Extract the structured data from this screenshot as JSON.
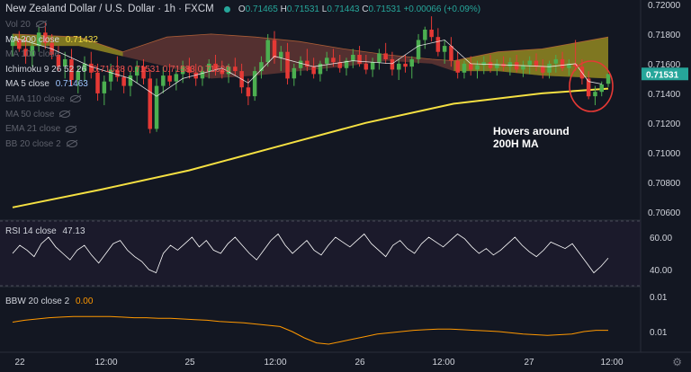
{
  "header": {
    "title": "New Zealand Dollar / U.S. Dollar",
    "timeframe": "1h",
    "source": "FXCM",
    "open": "0.71465",
    "high": "0.71531",
    "low": "0.71443",
    "close": "0.71531",
    "change": "+0.00066 (+0.09%)"
  },
  "legends": [
    {
      "label": "Vol 20",
      "value": "",
      "muted": true,
      "hidden_icon": true
    },
    {
      "label": "MA 200 close",
      "value": "0.71432",
      "value_color": "#f5e042",
      "muted": false
    },
    {
      "label": "MA 100 close",
      "value": "",
      "muted": true
    },
    {
      "label": "Ichimoku 9 26 52 26",
      "value": "0.71628  0.71531  0.71583  0.71620",
      "value_color": "#ef5350",
      "muted": false
    },
    {
      "label": "MA 5 close",
      "value": "0.71463",
      "value_color": "#9ec5ff",
      "muted": false
    },
    {
      "label": "EMA 110 close",
      "value": "",
      "muted": true,
      "hidden_icon": true
    },
    {
      "label": "MA 50 close",
      "value": "",
      "muted": true,
      "hidden_icon": true
    },
    {
      "label": "EMA 21 close",
      "value": "",
      "muted": true,
      "hidden_icon": true
    },
    {
      "label": "BB 20 close 2",
      "value": "",
      "muted": true,
      "hidden_icon": true
    }
  ],
  "annotation": {
    "line1": "Hovers around",
    "line2": "200H MA"
  },
  "rsi_legend": {
    "label": "RSI 14 close",
    "value": "47.13"
  },
  "bbw_legend": {
    "label": "BBW 20 close 2",
    "value": "0.00"
  },
  "current_price_tag": "0.71531",
  "colors": {
    "background": "#131722",
    "up": "#26a69a",
    "up_candle": "#4caf50",
    "down": "#ef5350",
    "down_candle": "#e53935",
    "ma200": "#f5e042",
    "ma5": "#ffffff",
    "cloud_bull": "#8a8a1e",
    "cloud_bear": "#6b3a35",
    "rsi": "#ffffff",
    "bbw": "#ff9800",
    "price_tag": "#26a69a",
    "circle": "#e53935"
  },
  "chart_data": [
    {
      "type": "candlestick",
      "title": "New Zealand Dollar / U.S. Dollar 1h FXCM",
      "x_ticks": [
        "22",
        "12:00",
        "25",
        "12:00",
        "26",
        "12:00",
        "27",
        "12:00"
      ],
      "y_ticks": [
        "0.72000",
        "0.71800",
        "0.71600",
        "0.71400",
        "0.71200",
        "0.71000",
        "0.70800",
        "0.70600"
      ],
      "ylim": [
        0.7055,
        0.7203
      ],
      "candles": [
        {
          "o": 0.7172,
          "h": 0.718,
          "l": 0.7165,
          "c": 0.7176
        },
        {
          "o": 0.7176,
          "h": 0.7182,
          "l": 0.7168,
          "c": 0.717
        },
        {
          "o": 0.717,
          "h": 0.7178,
          "l": 0.716,
          "c": 0.7165
        },
        {
          "o": 0.7165,
          "h": 0.7175,
          "l": 0.7158,
          "c": 0.7172
        },
        {
          "o": 0.7172,
          "h": 0.7185,
          "l": 0.7168,
          "c": 0.7181
        },
        {
          "o": 0.7181,
          "h": 0.7188,
          "l": 0.717,
          "c": 0.7174
        },
        {
          "o": 0.7174,
          "h": 0.718,
          "l": 0.7163,
          "c": 0.7166
        },
        {
          "o": 0.7166,
          "h": 0.7172,
          "l": 0.7155,
          "c": 0.7158
        },
        {
          "o": 0.7158,
          "h": 0.7168,
          "l": 0.715,
          "c": 0.7163
        },
        {
          "o": 0.7163,
          "h": 0.717,
          "l": 0.7145,
          "c": 0.7149
        },
        {
          "o": 0.7149,
          "h": 0.7158,
          "l": 0.714,
          "c": 0.7155
        },
        {
          "o": 0.7155,
          "h": 0.7165,
          "l": 0.7148,
          "c": 0.716
        },
        {
          "o": 0.716,
          "h": 0.7168,
          "l": 0.715,
          "c": 0.7154
        },
        {
          "o": 0.7154,
          "h": 0.716,
          "l": 0.7135,
          "c": 0.714
        },
        {
          "o": 0.714,
          "h": 0.7152,
          "l": 0.7132,
          "c": 0.7148
        },
        {
          "o": 0.7148,
          "h": 0.716,
          "l": 0.7142,
          "c": 0.7156
        },
        {
          "o": 0.7156,
          "h": 0.7165,
          "l": 0.7148,
          "c": 0.7151
        },
        {
          "o": 0.7151,
          "h": 0.7158,
          "l": 0.714,
          "c": 0.7145
        },
        {
          "o": 0.7145,
          "h": 0.7155,
          "l": 0.7138,
          "c": 0.7152
        },
        {
          "o": 0.7152,
          "h": 0.7162,
          "l": 0.7147,
          "c": 0.7158
        },
        {
          "o": 0.7158,
          "h": 0.7163,
          "l": 0.7146,
          "c": 0.715
        },
        {
          "o": 0.715,
          "h": 0.7156,
          "l": 0.7113,
          "c": 0.7116
        },
        {
          "o": 0.7116,
          "h": 0.715,
          "l": 0.7114,
          "c": 0.7145
        },
        {
          "o": 0.7145,
          "h": 0.7158,
          "l": 0.714,
          "c": 0.7152
        },
        {
          "o": 0.7152,
          "h": 0.716,
          "l": 0.7145,
          "c": 0.7148
        },
        {
          "o": 0.7148,
          "h": 0.7156,
          "l": 0.7142,
          "c": 0.7153
        },
        {
          "o": 0.7153,
          "h": 0.7162,
          "l": 0.7147,
          "c": 0.7158
        },
        {
          "o": 0.7158,
          "h": 0.7164,
          "l": 0.715,
          "c": 0.7154
        },
        {
          "o": 0.7154,
          "h": 0.716,
          "l": 0.7145,
          "c": 0.715
        },
        {
          "o": 0.715,
          "h": 0.7158,
          "l": 0.7145,
          "c": 0.7155
        },
        {
          "o": 0.7155,
          "h": 0.7163,
          "l": 0.715,
          "c": 0.716
        },
        {
          "o": 0.716,
          "h": 0.7166,
          "l": 0.7152,
          "c": 0.7156
        },
        {
          "o": 0.7156,
          "h": 0.7162,
          "l": 0.715,
          "c": 0.7153
        },
        {
          "o": 0.7153,
          "h": 0.716,
          "l": 0.7147,
          "c": 0.7158
        },
        {
          "o": 0.7158,
          "h": 0.7164,
          "l": 0.7152,
          "c": 0.7155
        },
        {
          "o": 0.7155,
          "h": 0.716,
          "l": 0.714,
          "c": 0.7144
        },
        {
          "o": 0.7144,
          "h": 0.715,
          "l": 0.7132,
          "c": 0.7138
        },
        {
          "o": 0.7138,
          "h": 0.7158,
          "l": 0.7135,
          "c": 0.7155
        },
        {
          "o": 0.7155,
          "h": 0.7165,
          "l": 0.715,
          "c": 0.7161
        },
        {
          "o": 0.7161,
          "h": 0.718,
          "l": 0.7158,
          "c": 0.7176
        },
        {
          "o": 0.7176,
          "h": 0.7182,
          "l": 0.716,
          "c": 0.7164
        },
        {
          "o": 0.7164,
          "h": 0.7172,
          "l": 0.7155,
          "c": 0.7168
        },
        {
          "o": 0.7168,
          "h": 0.7174,
          "l": 0.7146,
          "c": 0.715
        },
        {
          "o": 0.715,
          "h": 0.716,
          "l": 0.7145,
          "c": 0.7157
        },
        {
          "o": 0.7157,
          "h": 0.7165,
          "l": 0.7152,
          "c": 0.7162
        },
        {
          "o": 0.7162,
          "h": 0.717,
          "l": 0.7155,
          "c": 0.7158
        },
        {
          "o": 0.7158,
          "h": 0.7164,
          "l": 0.715,
          "c": 0.7153
        },
        {
          "o": 0.7153,
          "h": 0.7162,
          "l": 0.7148,
          "c": 0.716
        },
        {
          "o": 0.716,
          "h": 0.7168,
          "l": 0.7155,
          "c": 0.7164
        },
        {
          "o": 0.7164,
          "h": 0.717,
          "l": 0.7158,
          "c": 0.7161
        },
        {
          "o": 0.7161,
          "h": 0.7166,
          "l": 0.7154,
          "c": 0.7157
        },
        {
          "o": 0.7157,
          "h": 0.7164,
          "l": 0.7152,
          "c": 0.7162
        },
        {
          "o": 0.7162,
          "h": 0.717,
          "l": 0.7157,
          "c": 0.7166
        },
        {
          "o": 0.7166,
          "h": 0.7172,
          "l": 0.7158,
          "c": 0.716
        },
        {
          "o": 0.716,
          "h": 0.7166,
          "l": 0.7153,
          "c": 0.7156
        },
        {
          "o": 0.7156,
          "h": 0.7164,
          "l": 0.7151,
          "c": 0.7161
        },
        {
          "o": 0.7161,
          "h": 0.717,
          "l": 0.7156,
          "c": 0.7167
        },
        {
          "o": 0.7167,
          "h": 0.7174,
          "l": 0.716,
          "c": 0.7163
        },
        {
          "o": 0.7163,
          "h": 0.7168,
          "l": 0.7152,
          "c": 0.7156
        },
        {
          "o": 0.7156,
          "h": 0.7163,
          "l": 0.7149,
          "c": 0.716
        },
        {
          "o": 0.716,
          "h": 0.7166,
          "l": 0.7154,
          "c": 0.7158
        },
        {
          "o": 0.7158,
          "h": 0.7165,
          "l": 0.715,
          "c": 0.7163
        },
        {
          "o": 0.7163,
          "h": 0.718,
          "l": 0.716,
          "c": 0.7176
        },
        {
          "o": 0.7176,
          "h": 0.7185,
          "l": 0.717,
          "c": 0.7183
        },
        {
          "o": 0.7183,
          "h": 0.7192,
          "l": 0.7175,
          "c": 0.7178
        },
        {
          "o": 0.7178,
          "h": 0.7184,
          "l": 0.7165,
          "c": 0.7168
        },
        {
          "o": 0.7168,
          "h": 0.7176,
          "l": 0.716,
          "c": 0.7172
        },
        {
          "o": 0.7172,
          "h": 0.7178,
          "l": 0.7158,
          "c": 0.7162
        },
        {
          "o": 0.7162,
          "h": 0.7168,
          "l": 0.715,
          "c": 0.7154
        },
        {
          "o": 0.7154,
          "h": 0.7162,
          "l": 0.715,
          "c": 0.716
        },
        {
          "o": 0.716,
          "h": 0.7165,
          "l": 0.7152,
          "c": 0.7156
        },
        {
          "o": 0.7156,
          "h": 0.7162,
          "l": 0.715,
          "c": 0.7159
        },
        {
          "o": 0.7159,
          "h": 0.7165,
          "l": 0.7153,
          "c": 0.7161
        },
        {
          "o": 0.7161,
          "h": 0.7166,
          "l": 0.7154,
          "c": 0.7157
        },
        {
          "o": 0.7157,
          "h": 0.7163,
          "l": 0.7152,
          "c": 0.716
        },
        {
          "o": 0.716,
          "h": 0.7165,
          "l": 0.7155,
          "c": 0.7158
        },
        {
          "o": 0.7158,
          "h": 0.7164,
          "l": 0.7152,
          "c": 0.7161
        },
        {
          "o": 0.7161,
          "h": 0.7166,
          "l": 0.7154,
          "c": 0.7156
        },
        {
          "o": 0.7156,
          "h": 0.7162,
          "l": 0.7151,
          "c": 0.7159
        },
        {
          "o": 0.7159,
          "h": 0.7165,
          "l": 0.7153,
          "c": 0.7162
        },
        {
          "o": 0.7162,
          "h": 0.7167,
          "l": 0.7155,
          "c": 0.7158
        },
        {
          "o": 0.7158,
          "h": 0.7163,
          "l": 0.715,
          "c": 0.7154
        },
        {
          "o": 0.7154,
          "h": 0.7162,
          "l": 0.715,
          "c": 0.716
        },
        {
          "o": 0.716,
          "h": 0.7166,
          "l": 0.7154,
          "c": 0.7163
        },
        {
          "o": 0.7163,
          "h": 0.7168,
          "l": 0.7155,
          "c": 0.7157
        },
        {
          "o": 0.7157,
          "h": 0.7163,
          "l": 0.7152,
          "c": 0.716
        },
        {
          "o": 0.716,
          "h": 0.7176,
          "l": 0.7155,
          "c": 0.7158
        },
        {
          "o": 0.7158,
          "h": 0.7163,
          "l": 0.7146,
          "c": 0.715
        },
        {
          "o": 0.715,
          "h": 0.7155,
          "l": 0.7136,
          "c": 0.7138
        },
        {
          "o": 0.7138,
          "h": 0.7145,
          "l": 0.7132,
          "c": 0.7141
        },
        {
          "o": 0.7141,
          "h": 0.7148,
          "l": 0.7138,
          "c": 0.7146
        },
        {
          "o": 0.71465,
          "h": 0.71531,
          "l": 0.71443,
          "c": 0.71531
        }
      ],
      "ma200": [
        [
          0,
          0.7063
        ],
        [
          20,
          0.7075
        ],
        [
          40,
          0.7088
        ],
        [
          60,
          0.7104
        ],
        [
          80,
          0.712
        ],
        [
          100,
          0.7133
        ],
        [
          120,
          0.714
        ],
        [
          135,
          0.71432
        ]
      ],
      "ma5": [
        [
          0,
          0.7178
        ],
        [
          6,
          0.717
        ],
        [
          12,
          0.7158
        ],
        [
          18,
          0.715
        ],
        [
          22,
          0.7138
        ],
        [
          26,
          0.715
        ],
        [
          32,
          0.7157
        ],
        [
          36,
          0.7147
        ],
        [
          40,
          0.7165
        ],
        [
          46,
          0.7158
        ],
        [
          52,
          0.7162
        ],
        [
          58,
          0.716
        ],
        [
          62,
          0.7172
        ],
        [
          66,
          0.7176
        ],
        [
          70,
          0.716
        ],
        [
          76,
          0.7159
        ],
        [
          82,
          0.7158
        ],
        [
          86,
          0.716
        ],
        [
          88,
          0.7148
        ],
        [
          90,
          0.71463
        ]
      ],
      "cloud_upper": [
        [
          0,
          0.718
        ],
        [
          15,
          0.7178
        ],
        [
          25,
          0.7168
        ],
        [
          35,
          0.7178
        ],
        [
          45,
          0.718
        ],
        [
          55,
          0.7178
        ],
        [
          65,
          0.7175
        ],
        [
          75,
          0.717
        ],
        [
          85,
          0.7166
        ],
        [
          95,
          0.7163
        ],
        [
          100,
          0.7162
        ],
        [
          110,
          0.7168
        ],
        [
          120,
          0.717
        ],
        [
          135,
          0.7178
        ]
      ],
      "cloud_lower": [
        [
          0,
          0.7172
        ],
        [
          15,
          0.7172
        ],
        [
          25,
          0.7165
        ],
        [
          35,
          0.7158
        ],
        [
          45,
          0.715
        ],
        [
          55,
          0.7152
        ],
        [
          65,
          0.7155
        ],
        [
          75,
          0.7158
        ],
        [
          85,
          0.7162
        ],
        [
          95,
          0.716
        ],
        [
          100,
          0.7155
        ],
        [
          110,
          0.7155
        ],
        [
          120,
          0.7152
        ],
        [
          135,
          0.715
        ]
      ]
    },
    {
      "type": "line",
      "title": "RSI 14 close",
      "y_ticks": [
        "60.00",
        "40.00"
      ],
      "ylim": [
        30,
        70
      ],
      "values": [
        50,
        55,
        52,
        48,
        56,
        60,
        54,
        50,
        46,
        52,
        55,
        49,
        44,
        50,
        56,
        58,
        52,
        48,
        45,
        40,
        38,
        50,
        55,
        52,
        56,
        60,
        54,
        58,
        52,
        50,
        56,
        60,
        55,
        50,
        46,
        52,
        58,
        62,
        55,
        50,
        54,
        58,
        52,
        49,
        55,
        60,
        57,
        54,
        58,
        62,
        56,
        52,
        48,
        55,
        58,
        53,
        50,
        56,
        60,
        57,
        54,
        58,
        62,
        59,
        54,
        50,
        53,
        49,
        52,
        56,
        60,
        55,
        51,
        48,
        52,
        57,
        55,
        53,
        56,
        50,
        44,
        38,
        42,
        47.13
      ]
    },
    {
      "type": "line",
      "title": "BBW 20 close 2",
      "y_ticks": [
        "0.01",
        "0.01"
      ],
      "ylim": [
        0,
        1
      ],
      "values": [
        0.45,
        0.48,
        0.5,
        0.52,
        0.53,
        0.54,
        0.54,
        0.54,
        0.54,
        0.53,
        0.52,
        0.52,
        0.51,
        0.51,
        0.5,
        0.49,
        0.48,
        0.46,
        0.45,
        0.44,
        0.42,
        0.4,
        0.38,
        0.3,
        0.2,
        0.12,
        0.1,
        0.14,
        0.18,
        0.22,
        0.26,
        0.28,
        0.3,
        0.32,
        0.33,
        0.34,
        0.34,
        0.33,
        0.32,
        0.31,
        0.3,
        0.28,
        0.26,
        0.25,
        0.24,
        0.25,
        0.26,
        0.3,
        0.32,
        0.32
      ]
    }
  ],
  "x_axis_labels": [
    "22",
    "12:00",
    "25",
    "12:00",
    "26",
    "12:00",
    "27",
    "12:00"
  ]
}
